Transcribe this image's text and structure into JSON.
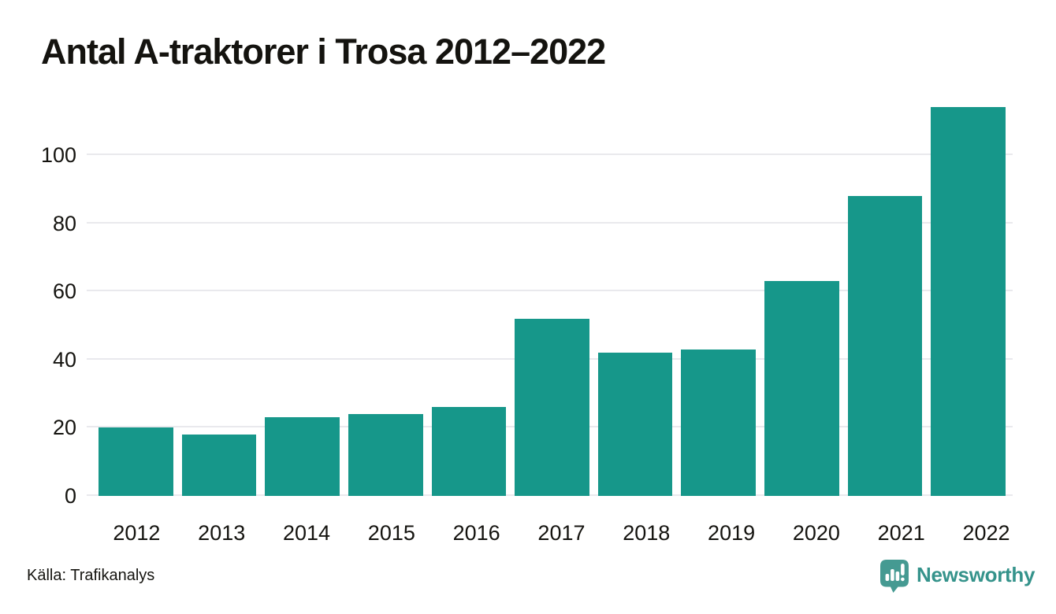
{
  "title": "Antal A-traktorer i Trosa 2012–2022",
  "source": {
    "label": "Källa: Trafikanalys"
  },
  "branding": {
    "name": "Newsworthy",
    "logo_icon": "newsworthy-speech-bubble-bar-chart-icon"
  },
  "colors": {
    "bar": "#16978a",
    "gridline": "#e9e9ed",
    "text": "#14130f",
    "brand_text": "#35938b",
    "brand_logo": "#459a92"
  },
  "chart_data": {
    "type": "bar",
    "title": "Antal A-traktorer i Trosa 2012–2022",
    "categories": [
      "2012",
      "2013",
      "2014",
      "2015",
      "2016",
      "2017",
      "2018",
      "2019",
      "2020",
      "2021",
      "2022"
    ],
    "values": [
      20,
      18,
      23,
      24,
      26,
      52,
      42,
      43,
      63,
      88,
      114
    ],
    "xlabel": "",
    "ylabel": "",
    "y_ticks": [
      0,
      20,
      40,
      60,
      80,
      100
    ],
    "ylim": [
      0,
      115
    ],
    "grid": "horizontal",
    "legend": "none",
    "bar_color": "#16978a",
    "source": "Källa: Trafikanalys"
  }
}
